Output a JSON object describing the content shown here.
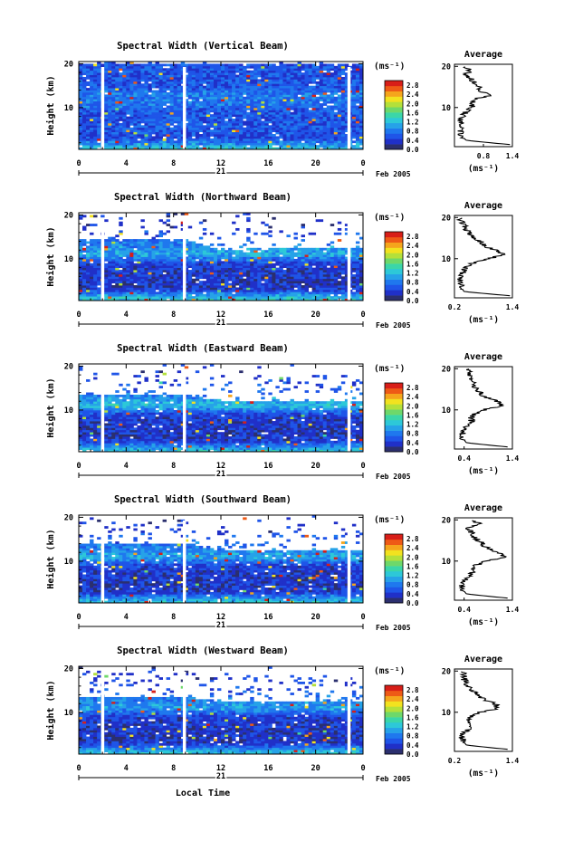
{
  "colors": {
    "colormap": [
      "#2b2f6e",
      "#2030c8",
      "#1f55e8",
      "#1f78ee",
      "#26a2e8",
      "#2dc8d8",
      "#3bd6a8",
      "#6ed86a",
      "#b4e03a",
      "#f2e21f",
      "#f5a51c",
      "#ee5a16",
      "#d81e18"
    ],
    "background": "#ffffff",
    "blank_strip": "#ffffff"
  },
  "figure": {
    "date_label": "Feb 2005",
    "date_day": "21",
    "xlabel_bottom": "Local Time",
    "colorbar_unit": "(ms⁻¹)",
    "colorbar_ticks": [
      "2.8",
      "2.4",
      "2.0",
      "1.6",
      "1.2",
      "0.8",
      "0.4",
      "0.0"
    ],
    "x_ticks": [
      "0",
      "4",
      "8",
      "12",
      "16",
      "20",
      "0"
    ],
    "y_ticks": [
      "20",
      "10"
    ],
    "y_label": "Height (km)",
    "avg_title": "Average",
    "avg_unit": "(ms⁻¹)",
    "avg_y_ticks": [
      "20",
      "10"
    ]
  },
  "chart_data": [
    {
      "type": "heatmap",
      "title": "Spectral Width (Vertical Beam)",
      "xlabel": "",
      "ylabel": "Height (km)",
      "xlim": [
        0,
        24
      ],
      "ylim": [
        0.5,
        20.5
      ],
      "colorbar": {
        "label": "(ms⁻¹)",
        "range": [
          0.0,
          3.0
        ],
        "ticks": [
          0.0,
          0.4,
          0.8,
          1.2,
          1.6,
          2.0,
          2.4,
          2.8
        ]
      },
      "data_gaps_hours": [
        2.0,
        8.9,
        22.8
      ],
      "mean_width_by_layer": {
        "heights_km": [
          1,
          3,
          5,
          7,
          9,
          11,
          13,
          15,
          17,
          19
        ],
        "values": [
          1.2,
          0.5,
          0.6,
          0.55,
          0.6,
          0.75,
          0.8,
          0.6,
          0.55,
          0.6
        ]
      },
      "top_of_data_km": {
        "times_h": [
          0,
          4,
          8,
          9,
          12,
          16,
          20,
          23.5
        ],
        "values": [
          20,
          20,
          20,
          20,
          20,
          20,
          20,
          20
        ]
      },
      "average_profile": {
        "xlim": [
          0.2,
          1.4
        ],
        "xticks": [
          "0.8",
          "1.4"
        ],
        "height_km": [
          1,
          2,
          3,
          4,
          5,
          6,
          7,
          8,
          9,
          10,
          11,
          12,
          13,
          14,
          15,
          16,
          17,
          18,
          19,
          20
        ],
        "value": [
          1.35,
          0.45,
          0.35,
          0.34,
          0.33,
          0.34,
          0.35,
          0.36,
          0.45,
          0.55,
          0.6,
          0.62,
          0.95,
          0.75,
          0.7,
          0.6,
          0.55,
          0.45,
          0.5,
          0.4
        ]
      }
    },
    {
      "type": "heatmap",
      "title": "Spectral Width (Northward Beam)",
      "xlabel": "",
      "ylabel": "Height (km)",
      "xlim": [
        0,
        24
      ],
      "ylim": [
        0.5,
        20.5
      ],
      "colorbar": {
        "label": "(ms⁻¹)",
        "range": [
          0.0,
          3.0
        ],
        "ticks": [
          0.0,
          0.4,
          0.8,
          1.2,
          1.6,
          2.0,
          2.4,
          2.8
        ]
      },
      "data_gaps_hours": [
        2.0,
        8.9,
        22.8
      ],
      "mean_width_by_layer": {
        "heights_km": [
          1,
          3,
          5,
          7,
          9,
          11,
          13,
          15,
          17,
          19
        ],
        "values": [
          1.3,
          0.4,
          0.35,
          0.4,
          0.45,
          1.1,
          0.9,
          0.6,
          0.4,
          0.35
        ]
      },
      "top_of_data_km": {
        "times_h": [
          0,
          4,
          8,
          9,
          12,
          16,
          20,
          23.5
        ],
        "values": [
          14.5,
          14.5,
          14.5,
          14.5,
          12,
          12.5,
          12.5,
          12.5
        ]
      },
      "average_profile": {
        "xlim": [
          0.2,
          1.4
        ],
        "xticks": [
          "0.2",
          "1.4"
        ],
        "height_km": [
          1,
          2,
          3,
          4,
          5,
          6,
          7,
          8,
          9,
          10,
          11,
          12,
          13,
          14,
          15,
          16,
          17,
          18,
          19,
          20
        ],
        "value": [
          1.35,
          0.4,
          0.35,
          0.32,
          0.33,
          0.34,
          0.4,
          0.45,
          0.6,
          0.9,
          1.25,
          1.05,
          0.85,
          0.75,
          0.6,
          0.5,
          0.45,
          0.4,
          0.35,
          0.3
        ]
      }
    },
    {
      "type": "heatmap",
      "title": "Spectral Width (Eastward Beam)",
      "xlabel": "",
      "ylabel": "Height (km)",
      "xlim": [
        0,
        24
      ],
      "ylim": [
        0.5,
        20.5
      ],
      "colorbar": {
        "label": "(ms⁻¹)",
        "range": [
          0.0,
          3.0
        ],
        "ticks": [
          0.0,
          0.4,
          0.8,
          1.2,
          1.6,
          2.0,
          2.4,
          2.8
        ]
      },
      "data_gaps_hours": [
        2.0,
        8.9,
        22.8
      ],
      "mean_width_by_layer": {
        "heights_km": [
          1,
          3,
          5,
          7,
          9,
          11,
          13,
          15,
          17,
          19
        ],
        "values": [
          1.2,
          0.4,
          0.35,
          0.4,
          0.45,
          1.2,
          0.9,
          0.6,
          0.45,
          0.4
        ]
      },
      "top_of_data_km": {
        "times_h": [
          0,
          4,
          8,
          9,
          12,
          16,
          20,
          23.5
        ],
        "values": [
          13.5,
          13.5,
          13.5,
          13.5,
          12,
          12,
          12,
          12
        ]
      },
      "average_profile": {
        "xlim": [
          0.2,
          1.4
        ],
        "xticks": [
          "0.4",
          "1.4"
        ],
        "height_km": [
          1,
          2,
          3,
          4,
          5,
          6,
          7,
          8,
          9,
          10,
          11,
          12,
          13,
          14,
          15,
          16,
          17,
          18,
          19,
          20
        ],
        "value": [
          1.3,
          0.45,
          0.38,
          0.36,
          0.4,
          0.45,
          0.55,
          0.55,
          0.6,
          0.8,
          1.2,
          1.1,
          0.85,
          0.75,
          0.65,
          0.6,
          0.55,
          0.5,
          0.55,
          0.5
        ]
      }
    },
    {
      "type": "heatmap",
      "title": "Spectral Width (Southward Beam)",
      "xlabel": "",
      "ylabel": "Height (km)",
      "xlim": [
        0,
        24
      ],
      "ylim": [
        0.5,
        20.5
      ],
      "colorbar": {
        "label": "(ms⁻¹)",
        "range": [
          0.0,
          3.0
        ],
        "ticks": [
          0.0,
          0.4,
          0.8,
          1.2,
          1.6,
          2.0,
          2.4,
          2.8
        ]
      },
      "data_gaps_hours": [
        2.0,
        8.9,
        22.8
      ],
      "mean_width_by_layer": {
        "heights_km": [
          1,
          3,
          5,
          7,
          9,
          11,
          13,
          15,
          17,
          19
        ],
        "values": [
          1.2,
          0.4,
          0.35,
          0.4,
          0.45,
          1.1,
          0.85,
          0.6,
          0.45,
          0.4
        ]
      },
      "top_of_data_km": {
        "times_h": [
          0,
          4,
          8,
          9,
          12,
          16,
          20,
          23.5
        ],
        "values": [
          14,
          14,
          14,
          14,
          12.5,
          12.5,
          12.5,
          12.5
        ]
      },
      "average_profile": {
        "xlim": [
          0.2,
          1.4
        ],
        "xticks": [
          "0.4",
          "1.4"
        ],
        "height_km": [
          1,
          2,
          3,
          4,
          5,
          6,
          7,
          8,
          9,
          10,
          11,
          12,
          13,
          14,
          15,
          16,
          17,
          18,
          19,
          20
        ],
        "value": [
          1.3,
          0.45,
          0.38,
          0.35,
          0.38,
          0.45,
          0.55,
          0.6,
          0.65,
          0.85,
          1.25,
          1.1,
          0.9,
          0.8,
          0.7,
          0.6,
          0.55,
          0.5,
          0.75,
          0.5
        ]
      }
    },
    {
      "type": "heatmap",
      "title": "Spectral Width (Westward Beam)",
      "xlabel": "Local Time",
      "ylabel": "Height (km)",
      "xlim": [
        0,
        24
      ],
      "ylim": [
        0.5,
        20.5
      ],
      "colorbar": {
        "label": "(ms⁻¹)",
        "range": [
          0.0,
          3.0
        ],
        "ticks": [
          0.0,
          0.4,
          0.8,
          1.2,
          1.6,
          2.0,
          2.4,
          2.8
        ]
      },
      "data_gaps_hours": [
        2.0,
        8.9,
        22.8
      ],
      "mean_width_by_layer": {
        "heights_km": [
          1,
          3,
          5,
          7,
          9,
          11,
          13,
          15,
          17,
          19
        ],
        "values": [
          1.2,
          0.4,
          0.35,
          0.4,
          0.45,
          1.0,
          0.85,
          0.6,
          0.45,
          0.4
        ]
      },
      "top_of_data_km": {
        "times_h": [
          0,
          4,
          8,
          9,
          12,
          16,
          20,
          23.5
        ],
        "values": [
          13.5,
          13.5,
          13.5,
          13.5,
          12.5,
          12.5,
          12.5,
          12.5
        ]
      },
      "average_profile": {
        "xlim": [
          0.2,
          1.4
        ],
        "xticks": [
          "0.2",
          "1.4"
        ],
        "height_km": [
          1,
          2,
          3,
          4,
          5,
          6,
          7,
          8,
          9,
          10,
          11,
          12,
          13,
          14,
          15,
          16,
          17,
          18,
          19,
          20
        ],
        "value": [
          1.3,
          0.45,
          0.38,
          0.35,
          0.38,
          0.5,
          0.55,
          0.5,
          0.55,
          0.75,
          1.1,
          1.05,
          0.85,
          0.7,
          0.6,
          0.5,
          0.45,
          0.4,
          0.4,
          0.35
        ]
      }
    }
  ]
}
